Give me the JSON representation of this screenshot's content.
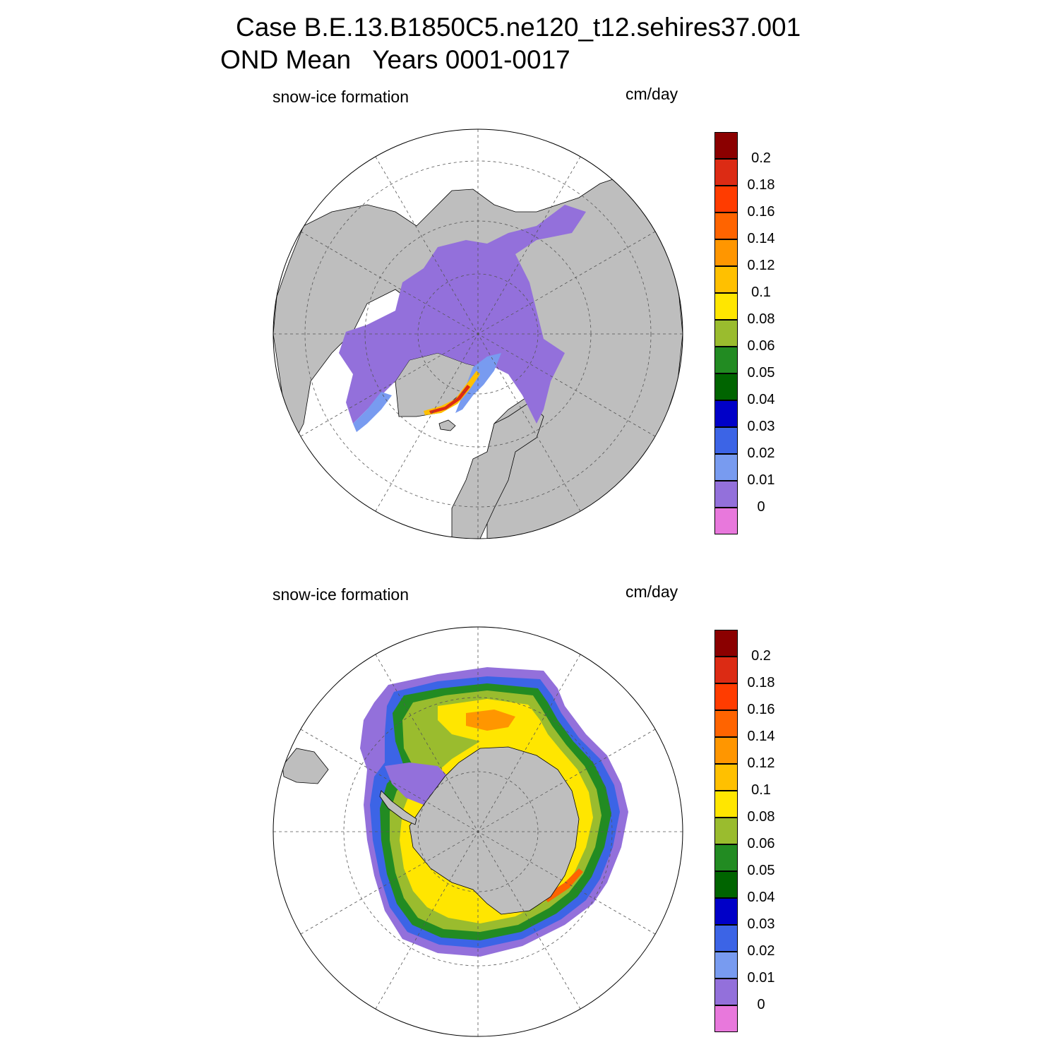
{
  "title": {
    "line1": "Case B.E.13.B1850C5.ne120_t12.sehires37.001",
    "line2": "OND Mean   Years 0001-0017"
  },
  "panels": [
    {
      "label": "snow-ice formation",
      "units": "cm/day",
      "hemisphere": "north"
    },
    {
      "label": "snow-ice formation",
      "units": "cm/day",
      "hemisphere": "south"
    }
  ],
  "colorbar": {
    "labels": [
      "0.2",
      "0.18",
      "0.16",
      "0.14",
      "0.12",
      "0.1",
      "0.08",
      "0.06",
      "0.05",
      "0.04",
      "0.03",
      "0.02",
      "0.01",
      "0"
    ],
    "colors": [
      "#8b0000",
      "#dc2b14",
      "#ff3c00",
      "#ff6400",
      "#ff9600",
      "#ffc000",
      "#ffe600",
      "#9abc2e",
      "#228b22",
      "#006400",
      "#0000c8",
      "#3c64e6",
      "#789bf0",
      "#9370db",
      "#e878dc"
    ]
  },
  "colors": {
    "land": "#bebebe",
    "ice_min": "#9370db",
    "ocean": "#ffffff"
  }
}
